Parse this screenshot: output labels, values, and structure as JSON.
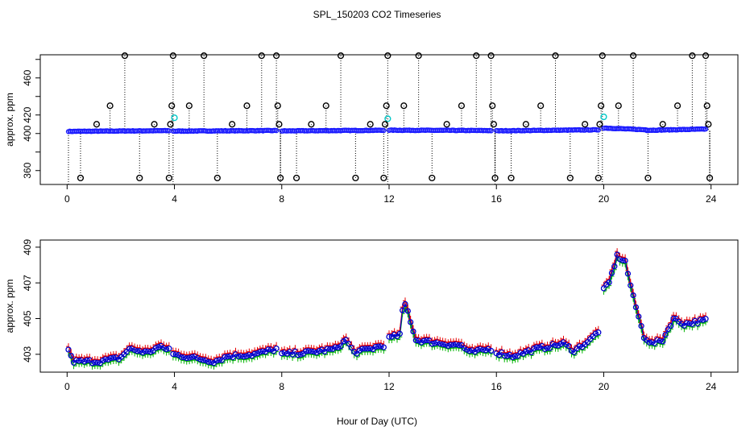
{
  "title": "SPL_150203  CO2 Timeseries",
  "xlabel": "Hour of Day (UTC)",
  "colors": {
    "outlier": "#000000",
    "flag": "#00c8c8",
    "main": "#1a1aff",
    "upper": "#e60000",
    "lower": "#00b400",
    "mid": "#0000cc"
  },
  "chart_data": [
    {
      "type": "scatter",
      "name": "full-range",
      "ylabel": "approx. ppm",
      "xlim": [
        -1,
        25
      ],
      "ylim": [
        345,
        485
      ],
      "xticks": [
        0,
        4,
        8,
        12,
        16,
        20,
        24
      ],
      "yticks": [
        360,
        380,
        400,
        420,
        440,
        460,
        480
      ],
      "ytick_labels": [
        "360",
        "",
        "400",
        "420",
        "",
        "460",
        ""
      ],
      "baseline_segments": [
        {
          "x0": 0.05,
          "x1": 3.8,
          "y0": 402.3,
          "y1": 403.1
        },
        {
          "x0": 3.95,
          "x1": 7.8,
          "y0": 402.6,
          "y1": 403.2
        },
        {
          "x0": 8.0,
          "x1": 11.8,
          "y0": 402.8,
          "y1": 403.5
        },
        {
          "x0": 12.0,
          "x1": 15.8,
          "y0": 403.6,
          "y1": 403.2
        },
        {
          "x0": 16.0,
          "x1": 19.8,
          "y0": 402.9,
          "y1": 404.0
        },
        {
          "x0": 20.0,
          "x1": 21.6,
          "y0": 406.0,
          "y1": 404.0
        },
        {
          "x0": 21.6,
          "x1": 23.8,
          "y0": 403.5,
          "y1": 404.8
        }
      ],
      "outliers": [
        {
          "x": 0.5,
          "y": 352
        },
        {
          "x": 1.1,
          "y": 410
        },
        {
          "x": 1.6,
          "y": 430
        },
        {
          "x": 2.15,
          "y": 484
        },
        {
          "x": 2.7,
          "y": 352
        },
        {
          "x": 3.25,
          "y": 410
        },
        {
          "x": 3.8,
          "y": 352
        },
        {
          "x": 3.85,
          "y": 410
        },
        {
          "x": 3.9,
          "y": 430
        },
        {
          "x": 3.95,
          "y": 484
        },
        {
          "x": 4.55,
          "y": 430
        },
        {
          "x": 5.1,
          "y": 484
        },
        {
          "x": 5.6,
          "y": 352
        },
        {
          "x": 6.15,
          "y": 410
        },
        {
          "x": 6.7,
          "y": 430
        },
        {
          "x": 7.25,
          "y": 484
        },
        {
          "x": 7.8,
          "y": 484
        },
        {
          "x": 7.85,
          "y": 430
        },
        {
          "x": 7.9,
          "y": 410
        },
        {
          "x": 7.95,
          "y": 352
        },
        {
          "x": 8.55,
          "y": 352
        },
        {
          "x": 9.1,
          "y": 410
        },
        {
          "x": 9.65,
          "y": 430
        },
        {
          "x": 10.2,
          "y": 484
        },
        {
          "x": 10.75,
          "y": 352
        },
        {
          "x": 11.3,
          "y": 410
        },
        {
          "x": 11.8,
          "y": 352
        },
        {
          "x": 11.85,
          "y": 410
        },
        {
          "x": 11.9,
          "y": 430
        },
        {
          "x": 11.95,
          "y": 484
        },
        {
          "x": 12.55,
          "y": 430
        },
        {
          "x": 13.1,
          "y": 484
        },
        {
          "x": 13.6,
          "y": 352
        },
        {
          "x": 14.15,
          "y": 410
        },
        {
          "x": 14.7,
          "y": 430
        },
        {
          "x": 15.25,
          "y": 484
        },
        {
          "x": 15.8,
          "y": 484
        },
        {
          "x": 15.85,
          "y": 430
        },
        {
          "x": 15.9,
          "y": 410
        },
        {
          "x": 15.95,
          "y": 352
        },
        {
          "x": 16.55,
          "y": 352
        },
        {
          "x": 17.1,
          "y": 410
        },
        {
          "x": 17.65,
          "y": 430
        },
        {
          "x": 18.2,
          "y": 484
        },
        {
          "x": 18.75,
          "y": 352
        },
        {
          "x": 19.3,
          "y": 410
        },
        {
          "x": 19.8,
          "y": 352
        },
        {
          "x": 19.85,
          "y": 410
        },
        {
          "x": 19.9,
          "y": 430
        },
        {
          "x": 19.95,
          "y": 484
        },
        {
          "x": 20.55,
          "y": 430
        },
        {
          "x": 21.1,
          "y": 484
        },
        {
          "x": 21.65,
          "y": 352
        },
        {
          "x": 22.2,
          "y": 410
        },
        {
          "x": 22.75,
          "y": 430
        },
        {
          "x": 23.3,
          "y": 484
        },
        {
          "x": 23.8,
          "y": 484
        },
        {
          "x": 23.85,
          "y": 430
        },
        {
          "x": 23.9,
          "y": 410
        },
        {
          "x": 23.95,
          "y": 352
        }
      ],
      "flagged": [
        {
          "x": 4.0,
          "y": 417
        },
        {
          "x": 11.95,
          "y": 416
        },
        {
          "x": 20.0,
          "y": 418
        }
      ]
    },
    {
      "type": "line",
      "name": "zoomed",
      "ylabel": "approx. ppm",
      "xlim": [
        -1,
        25
      ],
      "ylim": [
        402.0,
        409.4
      ],
      "xticks": [
        0,
        4,
        8,
        12,
        16,
        20,
        24
      ],
      "yticks": [
        403,
        405,
        407,
        409
      ],
      "series_names": [
        "upper",
        "mean",
        "lower"
      ],
      "anchors": [
        {
          "x": 0.05,
          "y": 403.3,
          "gap": false
        },
        {
          "x": 0.2,
          "y": 402.6,
          "gap": false
        },
        {
          "x": 1.2,
          "y": 402.6,
          "gap": false
        },
        {
          "x": 2.0,
          "y": 402.8,
          "gap": false
        },
        {
          "x": 2.3,
          "y": 403.3,
          "gap": false
        },
        {
          "x": 3.0,
          "y": 403.1,
          "gap": false
        },
        {
          "x": 3.4,
          "y": 403.4,
          "gap": false
        },
        {
          "x": 3.8,
          "y": 403.3,
          "gap": false
        },
        {
          "x": 3.95,
          "y": 403.0,
          "gap": true
        },
        {
          "x": 5.5,
          "y": 402.6,
          "gap": false
        },
        {
          "x": 6.0,
          "y": 402.9,
          "gap": false
        },
        {
          "x": 7.0,
          "y": 403.0,
          "gap": false
        },
        {
          "x": 7.8,
          "y": 403.3,
          "gap": false
        },
        {
          "x": 8.0,
          "y": 403.0,
          "gap": true
        },
        {
          "x": 9.0,
          "y": 403.1,
          "gap": false
        },
        {
          "x": 10.0,
          "y": 403.3,
          "gap": false
        },
        {
          "x": 10.4,
          "y": 403.8,
          "gap": false
        },
        {
          "x": 10.7,
          "y": 403.1,
          "gap": false
        },
        {
          "x": 11.0,
          "y": 403.2,
          "gap": false
        },
        {
          "x": 11.8,
          "y": 403.5,
          "gap": false
        },
        {
          "x": 12.0,
          "y": 403.9,
          "gap": true
        },
        {
          "x": 12.4,
          "y": 404.1,
          "gap": false
        },
        {
          "x": 12.55,
          "y": 406.0,
          "gap": false
        },
        {
          "x": 12.7,
          "y": 405.4,
          "gap": false
        },
        {
          "x": 13.0,
          "y": 403.8,
          "gap": false
        },
        {
          "x": 14.0,
          "y": 403.6,
          "gap": false
        },
        {
          "x": 14.7,
          "y": 403.5,
          "gap": false
        },
        {
          "x": 15.0,
          "y": 403.1,
          "gap": false
        },
        {
          "x": 15.8,
          "y": 403.3,
          "gap": false
        },
        {
          "x": 16.0,
          "y": 403.1,
          "gap": true
        },
        {
          "x": 16.6,
          "y": 402.9,
          "gap": false
        },
        {
          "x": 17.5,
          "y": 403.3,
          "gap": false
        },
        {
          "x": 18.5,
          "y": 403.6,
          "gap": false
        },
        {
          "x": 18.9,
          "y": 403.2,
          "gap": false
        },
        {
          "x": 19.5,
          "y": 403.8,
          "gap": false
        },
        {
          "x": 19.8,
          "y": 404.3,
          "gap": false
        },
        {
          "x": 20.0,
          "y": 406.6,
          "gap": true
        },
        {
          "x": 20.2,
          "y": 407.0,
          "gap": false
        },
        {
          "x": 20.5,
          "y": 408.5,
          "gap": false
        },
        {
          "x": 20.8,
          "y": 408.2,
          "gap": false
        },
        {
          "x": 21.1,
          "y": 406.2,
          "gap": false
        },
        {
          "x": 21.5,
          "y": 404.0,
          "gap": false
        },
        {
          "x": 21.8,
          "y": 403.6,
          "gap": false
        },
        {
          "x": 22.2,
          "y": 403.8,
          "gap": false
        },
        {
          "x": 22.6,
          "y": 405.0,
          "gap": false
        },
        {
          "x": 23.0,
          "y": 404.7,
          "gap": false
        },
        {
          "x": 23.8,
          "y": 404.9,
          "gap": false
        }
      ]
    }
  ]
}
